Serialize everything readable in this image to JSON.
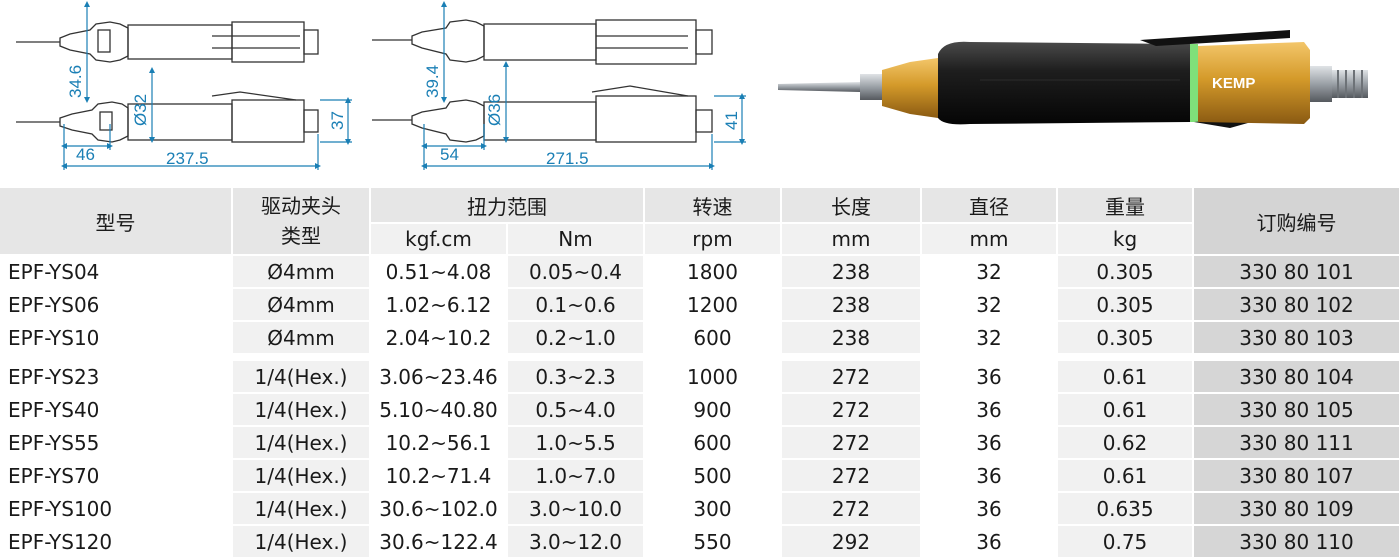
{
  "drawings": {
    "left": {
      "dims": [
        "34.6",
        "Ø32",
        "37",
        "46",
        "237.5"
      ]
    },
    "middle": {
      "dims": [
        "39.4",
        "Ø36",
        "41",
        "54",
        "271.5"
      ]
    }
  },
  "product": {
    "brand": "KEMP",
    "colors": {
      "body": "#1e1e1e",
      "collar": "#d49a2a",
      "ring": "#7fe07a",
      "shaft": "#9aa0a6"
    }
  },
  "table": {
    "headers": {
      "model": "型号",
      "chuck": "驱动夹头类型",
      "torque": "扭力范围",
      "torque_kgf": "kgf.cm",
      "torque_nm": "Nm",
      "speed": "转速",
      "speed_unit": "rpm",
      "length": "长度",
      "length_unit": "mm",
      "diameter": "直径",
      "diameter_unit": "mm",
      "weight": "重量",
      "weight_unit": "kg",
      "order": "订购编号"
    },
    "rows": [
      {
        "model": "EPF-YS04",
        "chuck": "Ø4mm",
        "kgf": "0.51~4.08",
        "nm": "0.05~0.4",
        "rpm": "1800",
        "len": "238",
        "dia": "32",
        "kg": "0.305",
        "order": "330 80 101"
      },
      {
        "model": "EPF-YS06",
        "chuck": "Ø4mm",
        "kgf": "1.02~6.12",
        "nm": "0.1~0.6",
        "rpm": "1200",
        "len": "238",
        "dia": "32",
        "kg": "0.305",
        "order": "330 80 102"
      },
      {
        "model": "EPF-YS10",
        "chuck": "Ø4mm",
        "kgf": "2.04~10.2",
        "nm": "0.2~1.0",
        "rpm": "600",
        "len": "238",
        "dia": "32",
        "kg": "0.305",
        "order": "330 80 103"
      },
      {
        "model": "EPF-YS23",
        "chuck": "1/4(Hex.)",
        "kgf": "3.06~23.46",
        "nm": "0.3~2.3",
        "rpm": "1000",
        "len": "272",
        "dia": "36",
        "kg": "0.61",
        "order": "330 80 104"
      },
      {
        "model": "EPF-YS40",
        "chuck": "1/4(Hex.)",
        "kgf": "5.10~40.80",
        "nm": "0.5~4.0",
        "rpm": "900",
        "len": "272",
        "dia": "36",
        "kg": "0.61",
        "order": "330 80 105"
      },
      {
        "model": "EPF-YS55",
        "chuck": "1/4(Hex.)",
        "kgf": "10.2~56.1",
        "nm": "1.0~5.5",
        "rpm": "600",
        "len": "272",
        "dia": "36",
        "kg": "0.62",
        "order": "330 80 111"
      },
      {
        "model": "EPF-YS70",
        "chuck": "1/4(Hex.)",
        "kgf": "10.2~71.4",
        "nm": "1.0~7.0",
        "rpm": "500",
        "len": "272",
        "dia": "36",
        "kg": "0.61",
        "order": "330 80 107"
      },
      {
        "model": "EPF-YS100",
        "chuck": "1/4(Hex.)",
        "kgf": "30.6~102.0",
        "nm": "3.0~10.0",
        "rpm": "300",
        "len": "272",
        "dia": "36",
        "kg": "0.635",
        "order": "330 80 109"
      },
      {
        "model": "EPF-YS120",
        "chuck": "1/4(Hex.)",
        "kgf": "30.6~122.4",
        "nm": "3.0~12.0",
        "rpm": "550",
        "len": "292",
        "dia": "36",
        "kg": "0.75",
        "order": "330 80 110"
      }
    ]
  }
}
